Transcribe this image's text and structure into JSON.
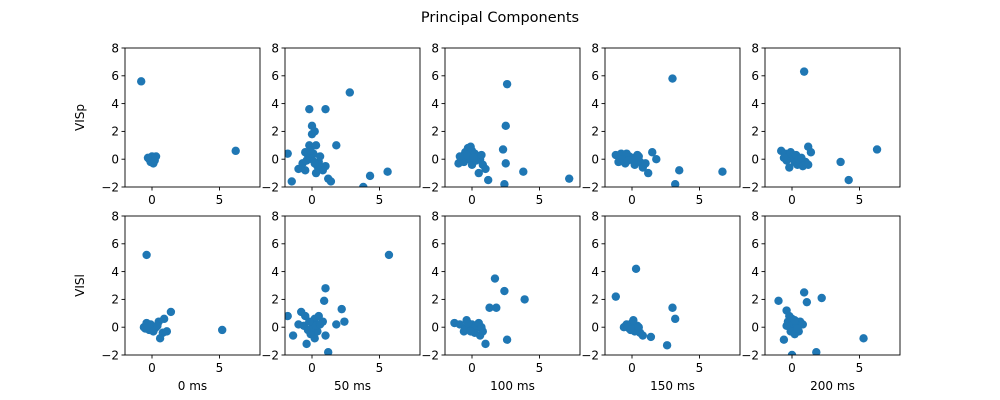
{
  "chart_data": {
    "type": "scatter",
    "title": "Principal Components",
    "row_labels": [
      "VISp",
      "VISl"
    ],
    "col_labels": [
      "0 ms",
      "50 ms",
      "100 ms",
      "150 ms",
      "200 ms"
    ],
    "xlim": [
      -2,
      8
    ],
    "ylim": [
      -2,
      8
    ],
    "xticks": [
      0,
      5
    ],
    "yticks": [
      -2,
      0,
      2,
      4,
      6,
      8
    ],
    "grid": false,
    "color": "#1f77b4",
    "panels": [
      [
        {
          "points": [
            [
              -0.8,
              5.6
            ],
            [
              6.2,
              0.6
            ],
            [
              -0.2,
              0
            ],
            [
              0,
              0.2
            ],
            [
              0.2,
              0.1
            ],
            [
              -0.1,
              -0.2
            ],
            [
              0.1,
              -0.3
            ],
            [
              0.3,
              0.2
            ],
            [
              0,
              0.1
            ],
            [
              0.1,
              0.05
            ],
            [
              -0.3,
              0.1
            ],
            [
              0.2,
              -0.1
            ]
          ]
        },
        {
          "points": [
            [
              -1.8,
              0.4
            ],
            [
              -1.5,
              -1.6
            ],
            [
              -1,
              -0.7
            ],
            [
              -0.5,
              -0.8
            ],
            [
              -0.3,
              0.3
            ],
            [
              -0.2,
              1
            ],
            [
              0,
              0
            ],
            [
              0,
              1.8
            ],
            [
              -0.2,
              3.6
            ],
            [
              1,
              3.6
            ],
            [
              2.8,
              4.8
            ],
            [
              0,
              2.4
            ],
            [
              0.2,
              2
            ],
            [
              0.3,
              1
            ],
            [
              0.5,
              -0.2
            ],
            [
              0.8,
              -0.8
            ],
            [
              1,
              -0.5
            ],
            [
              1.2,
              -1.4
            ],
            [
              1.4,
              -1.6
            ],
            [
              1.8,
              1
            ],
            [
              4.3,
              -1.2
            ],
            [
              5.6,
              -0.9
            ],
            [
              3.8,
              -2
            ],
            [
              0.4,
              -0.5
            ],
            [
              -0.5,
              0.5
            ],
            [
              -0.4,
              -0.1
            ],
            [
              0.1,
              0.4
            ],
            [
              0.2,
              -0.3
            ],
            [
              -0.1,
              0.6
            ],
            [
              0.6,
              0.2
            ],
            [
              -0.7,
              -0.3
            ],
            [
              0.3,
              -1
            ]
          ]
        },
        {
          "points": [
            [
              -1,
              -0.3
            ],
            [
              -0.8,
              0.1
            ],
            [
              -0.5,
              0.5
            ],
            [
              -0.3,
              0.8
            ],
            [
              -0.1,
              0.9
            ],
            [
              0,
              0.6
            ],
            [
              0.2,
              0.4
            ],
            [
              0.4,
              0.2
            ],
            [
              0.6,
              0
            ],
            [
              0.8,
              -0.4
            ],
            [
              1,
              -0.7
            ],
            [
              1.2,
              -1.5
            ],
            [
              0.5,
              -1
            ],
            [
              2.6,
              5.4
            ],
            [
              2.5,
              2.4
            ],
            [
              2.3,
              0.7
            ],
            [
              2.5,
              -0.3
            ],
            [
              2.4,
              -1.8
            ],
            [
              3.8,
              -0.9
            ],
            [
              7.2,
              -1.4
            ],
            [
              -0.6,
              -0.2
            ],
            [
              -0.2,
              0
            ],
            [
              0,
              -0.4
            ],
            [
              0.3,
              -0.1
            ],
            [
              -0.4,
              0.3
            ],
            [
              0.1,
              0.1
            ],
            [
              0.7,
              0.3
            ],
            [
              -0.9,
              0.2
            ]
          ]
        },
        {
          "points": [
            [
              -1.2,
              0.3
            ],
            [
              -1,
              -0.2
            ],
            [
              -0.8,
              0.4
            ],
            [
              -0.5,
              -0.3
            ],
            [
              -0.2,
              0.2
            ],
            [
              0,
              0.1
            ],
            [
              0.2,
              -0.4
            ],
            [
              0.4,
              0.3
            ],
            [
              0.6,
              -0.2
            ],
            [
              0.8,
              -0.6
            ],
            [
              1,
              -0.3
            ],
            [
              1.2,
              -1
            ],
            [
              1.5,
              0.5
            ],
            [
              1.8,
              0
            ],
            [
              3,
              5.8
            ],
            [
              3.5,
              -0.8
            ],
            [
              3.2,
              -1.8
            ],
            [
              6.7,
              -0.9
            ],
            [
              -0.4,
              0.4
            ],
            [
              -0.7,
              0
            ],
            [
              0.3,
              0
            ],
            [
              0.1,
              -0.1
            ],
            [
              -0.3,
              -0.1
            ],
            [
              0.5,
              0.2
            ]
          ]
        },
        {
          "points": [
            [
              -0.8,
              0.6
            ],
            [
              -0.5,
              0.4
            ],
            [
              -0.3,
              0.2
            ],
            [
              -0.1,
              0.5
            ],
            [
              0,
              0.1
            ],
            [
              0.2,
              -0.2
            ],
            [
              0.4,
              -0.4
            ],
            [
              0.6,
              -0.3
            ],
            [
              0.8,
              -0.5
            ],
            [
              1,
              -0.2
            ],
            [
              1.2,
              0.9
            ],
            [
              1.4,
              0.5
            ],
            [
              1.2,
              -0.4
            ],
            [
              0.9,
              6.3
            ],
            [
              3.6,
              -0.2
            ],
            [
              4.2,
              -1.5
            ],
            [
              6.3,
              0.7
            ],
            [
              -0.2,
              -0.6
            ],
            [
              0.1,
              0
            ],
            [
              -0.4,
              -0.1
            ],
            [
              0.3,
              0.3
            ],
            [
              0.5,
              0
            ],
            [
              0.7,
              0.1
            ],
            [
              -0.6,
              0.1
            ]
          ]
        }
      ],
      [
        {
          "points": [
            [
              -0.4,
              5.2
            ],
            [
              -0.6,
              0
            ],
            [
              -0.4,
              0.3
            ],
            [
              -0.1,
              0.2
            ],
            [
              0.2,
              -0.1
            ],
            [
              0.5,
              0.4
            ],
            [
              0.8,
              -0.4
            ],
            [
              1.1,
              -0.3
            ],
            [
              1.4,
              1.1
            ],
            [
              0.6,
              -0.8
            ],
            [
              0.9,
              0.6
            ],
            [
              5.2,
              -0.2
            ],
            [
              -0.2,
              -0.2
            ],
            [
              0,
              0.1
            ],
            [
              0.3,
              0
            ],
            [
              -0.5,
              -0.1
            ],
            [
              0.1,
              -0.3
            ],
            [
              0.4,
              0.1
            ]
          ]
        },
        {
          "points": [
            [
              -1.8,
              0.8
            ],
            [
              -1.4,
              -0.6
            ],
            [
              -1,
              0.2
            ],
            [
              -0.8,
              1.1
            ],
            [
              -0.5,
              0.8
            ],
            [
              -0.3,
              -0.2
            ],
            [
              0,
              0.3
            ],
            [
              0.2,
              0.6
            ],
            [
              0.4,
              -0.3
            ],
            [
              0.5,
              0.8
            ],
            [
              0.8,
              0.4
            ],
            [
              0.9,
              1.9
            ],
            [
              1,
              2.8
            ],
            [
              1,
              -0.6
            ],
            [
              1.2,
              -1.8
            ],
            [
              0.2,
              -0.8
            ],
            [
              1.8,
              0.2
            ],
            [
              2.2,
              1.3
            ],
            [
              2.4,
              0.4
            ],
            [
              5.7,
              5.2
            ],
            [
              -0.4,
              -1.2
            ],
            [
              -0.1,
              -0.5
            ],
            [
              0.1,
              0
            ],
            [
              0.3,
              0.1
            ],
            [
              -0.6,
              0.1
            ],
            [
              0.6,
              0.2
            ],
            [
              -0.2,
              0.4
            ]
          ]
        },
        {
          "points": [
            [
              -1.3,
              0.3
            ],
            [
              -0.9,
              0.2
            ],
            [
              -0.6,
              -0.3
            ],
            [
              -0.4,
              0.5
            ],
            [
              -0.2,
              0
            ],
            [
              0,
              0.2
            ],
            [
              0.2,
              -0.4
            ],
            [
              0.4,
              0
            ],
            [
              0.6,
              -0.6
            ],
            [
              0.8,
              -0.3
            ],
            [
              1,
              -1.2
            ],
            [
              1.3,
              1.4
            ],
            [
              1.7,
              3.5
            ],
            [
              1.8,
              1.4
            ],
            [
              2.4,
              2.6
            ],
            [
              2.6,
              -0.9
            ],
            [
              3.9,
              2
            ],
            [
              -0.5,
              -0.1
            ],
            [
              0.1,
              -0.1
            ],
            [
              -0.3,
              0.3
            ],
            [
              0.3,
              0.1
            ],
            [
              -0.1,
              -0.3
            ],
            [
              0.5,
              0.3
            ],
            [
              0.7,
              0
            ]
          ]
        },
        {
          "points": [
            [
              -1.2,
              2.2
            ],
            [
              -0.6,
              0
            ],
            [
              -0.4,
              0.2
            ],
            [
              -0.2,
              -0.1
            ],
            [
              0,
              0.3
            ],
            [
              0.2,
              -0.3
            ],
            [
              0.4,
              0.1
            ],
            [
              0.6,
              -0.4
            ],
            [
              0.8,
              -0.6
            ],
            [
              0.3,
              4.2
            ],
            [
              1.4,
              -0.7
            ],
            [
              2.6,
              -1.3
            ],
            [
              3,
              1.4
            ],
            [
              3.2,
              0.6
            ],
            [
              -0.3,
              0
            ],
            [
              0.1,
              0.5
            ],
            [
              0.5,
              0
            ],
            [
              -0.1,
              -0.2
            ]
          ]
        },
        {
          "points": [
            [
              -1,
              1.9
            ],
            [
              -0.6,
              -0.9
            ],
            [
              -0.4,
              1.2
            ],
            [
              -0.3,
              0.4
            ],
            [
              -0.2,
              0.8
            ],
            [
              0,
              0.6
            ],
            [
              0.1,
              0.2
            ],
            [
              0.3,
              0
            ],
            [
              0.5,
              -0.3
            ],
            [
              0.6,
              0.4
            ],
            [
              0.8,
              0.2
            ],
            [
              0,
              -2
            ],
            [
              0.9,
              2.5
            ],
            [
              1.1,
              1.8
            ],
            [
              1.8,
              -1.8
            ],
            [
              2.2,
              2.1
            ],
            [
              5.3,
              -0.8
            ],
            [
              -0.1,
              -0.3
            ],
            [
              0.2,
              -0.5
            ],
            [
              0.4,
              -0.1
            ],
            [
              -0.4,
              0.1
            ],
            [
              0.2,
              0.5
            ]
          ]
        }
      ]
    ]
  }
}
